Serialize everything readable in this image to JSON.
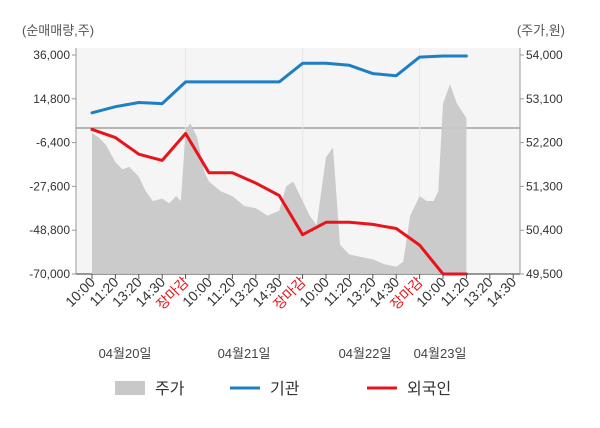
{
  "chart_data": {
    "type": "line",
    "left_axis": {
      "unit_label": "(순매매량,주)",
      "ticks": [
        "36,000",
        "14,800",
        "-6,400",
        "-27,600",
        "-48,800",
        "-70,000"
      ],
      "range": [
        -70000,
        36000
      ]
    },
    "right_axis": {
      "unit_label": "(주가,원)",
      "ticks": [
        "54,000",
        "53,100",
        "52,200",
        "51,300",
        "50,400",
        "49,500"
      ],
      "range": [
        49500,
        54000
      ]
    },
    "x_tick_labels": [
      "10:00",
      "11:20",
      "13:20",
      "14:30",
      "장마감",
      "10:00",
      "11:20",
      "13:20",
      "14:30",
      "장마감",
      "10:00",
      "11:20",
      "13:20",
      "14:30",
      "장마감",
      "10:00",
      "11:20",
      "13:20",
      "14:30"
    ],
    "date_labels": [
      "04월20일",
      "04월21일",
      "04월22일",
      "04월23일"
    ],
    "legend": [
      {
        "name": "주가",
        "color": "#c8c8c8"
      },
      {
        "name": "기관",
        "color": "#1f7fc4"
      },
      {
        "name": "외국인",
        "color": "#e8141b"
      }
    ],
    "series": [
      {
        "name": "기관",
        "color": "#1f7fc4",
        "axis": "left",
        "x": [
          0,
          1,
          2,
          3,
          4,
          5,
          6,
          7,
          8,
          9,
          10,
          11,
          12,
          13,
          14,
          15,
          16
        ],
        "values": [
          8000,
          11000,
          13000,
          12500,
          23000,
          23000,
          23000,
          23000,
          23000,
          32000,
          32000,
          31000,
          27000,
          26000,
          35000,
          35500,
          35500
        ]
      },
      {
        "name": "외국인",
        "color": "#e8141b",
        "axis": "left",
        "x": [
          0,
          1,
          2,
          3,
          4,
          5,
          6,
          7,
          8,
          9,
          10,
          11,
          12,
          13,
          14,
          15,
          16
        ],
        "values": [
          0,
          -4000,
          -12000,
          -15000,
          -2000,
          -21000,
          -21000,
          -26000,
          -32000,
          -51000,
          -45000,
          -45000,
          -46000,
          -48000,
          -56000,
          -70000,
          -70000
        ]
      },
      {
        "name": "주가",
        "color": "#c8c8c8",
        "axis": "right",
        "type": "area",
        "x": [
          0,
          0.3,
          0.6,
          1.0,
          1.3,
          1.6,
          2.0,
          2.3,
          2.6,
          3.0,
          3.3,
          3.6,
          3.8,
          4.0,
          4.2,
          4.5,
          4.8,
          5.0,
          5.5,
          6.0,
          6.5,
          7.0,
          7.5,
          8.0,
          8.3,
          8.6,
          9.0,
          9.3,
          9.6,
          10.0,
          10.3,
          10.6,
          11.0,
          11.5,
          12.0,
          12.5,
          13.0,
          13.3,
          13.6,
          14.0,
          14.3,
          14.6,
          14.8,
          15.0,
          15.3,
          15.6,
          16.0
        ],
        "values": [
          52400,
          52300,
          52150,
          51800,
          51650,
          51700,
          51500,
          51200,
          51000,
          51050,
          50950,
          51100,
          51000,
          52450,
          52600,
          52300,
          51600,
          51400,
          51200,
          51100,
          50900,
          50850,
          50700,
          50800,
          51300,
          51400,
          51000,
          50700,
          50500,
          51900,
          52100,
          50100,
          49900,
          49850,
          49800,
          49700,
          49650,
          49750,
          50700,
          51100,
          51000,
          51000,
          51200,
          53000,
          53400,
          53000,
          52700
        ]
      }
    ],
    "x_range": [
      0,
      19
    ]
  }
}
